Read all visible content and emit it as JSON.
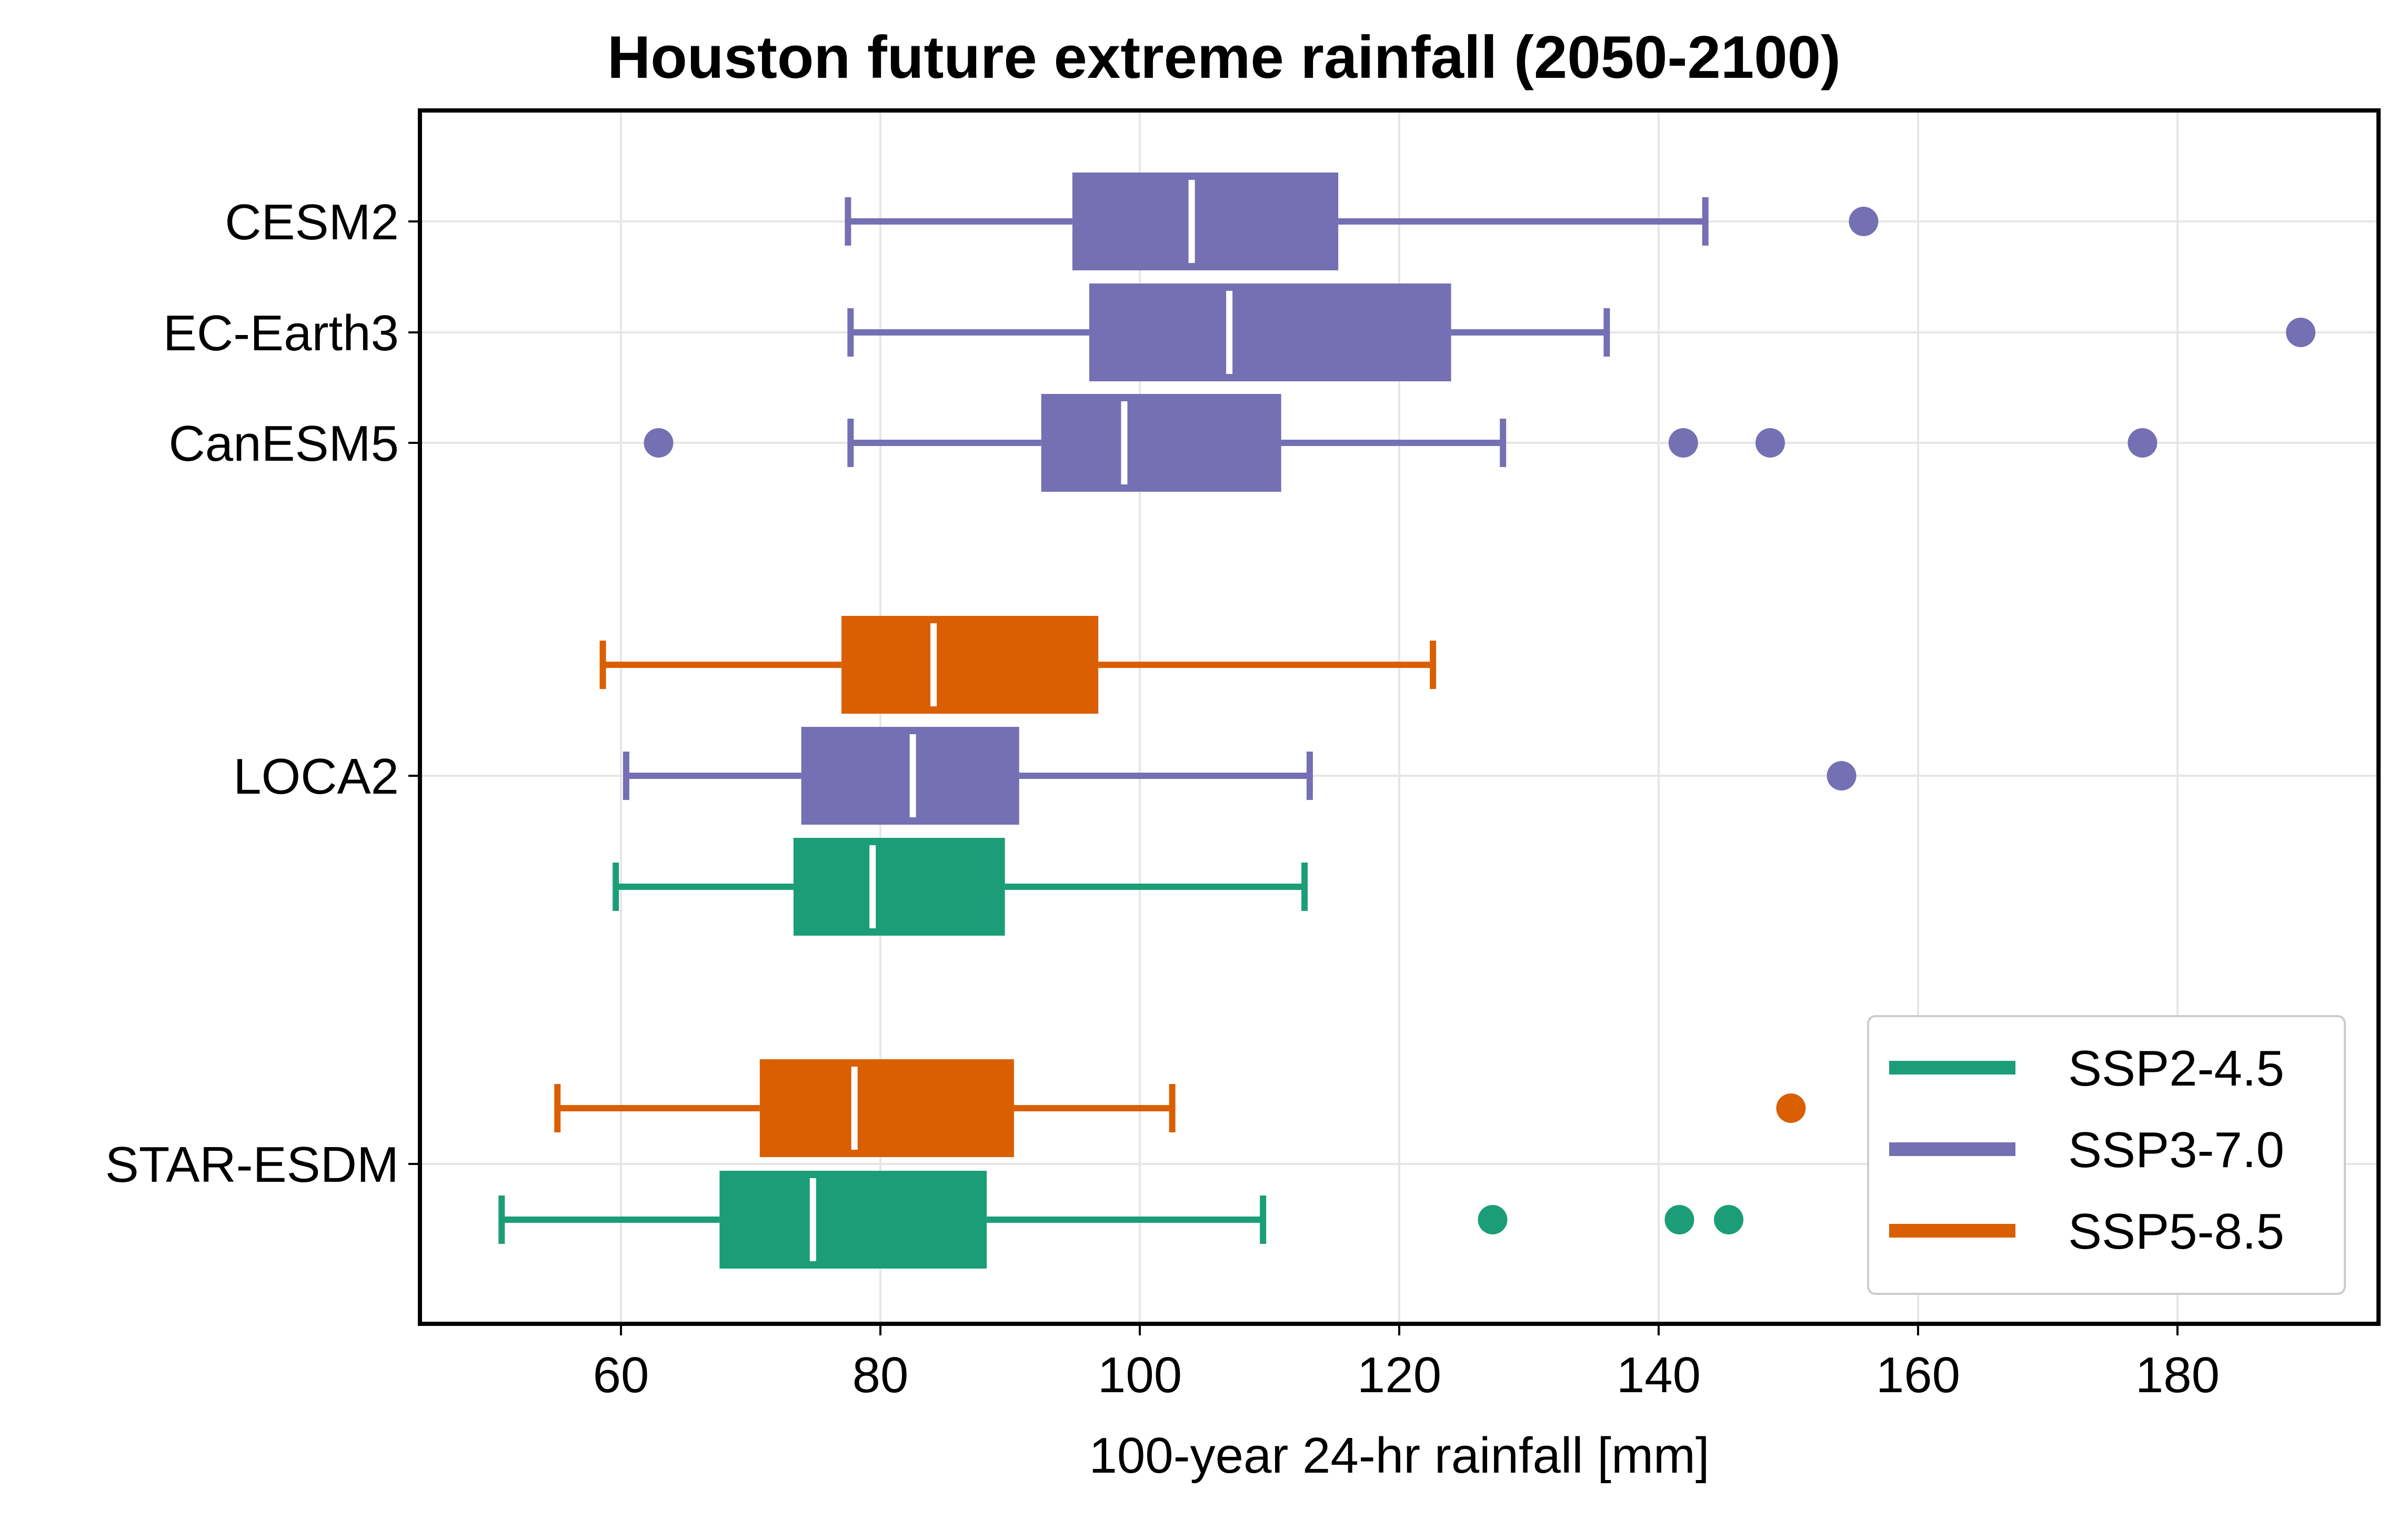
{
  "chart_data": {
    "type": "boxplot",
    "orientation": "horizontal",
    "title": "Houston future extreme rainfall (2050-2100)",
    "xlabel": "100-year 24-hr rainfall [mm]",
    "ylabel": "",
    "xlim": [
      44.5,
      195.5
    ],
    "x_ticks": [
      60,
      80,
      100,
      120,
      140,
      160,
      180
    ],
    "grid": true,
    "legend_position": "lower-right",
    "categories": [
      "CESM2",
      "EC-Earth3",
      "CanESM5",
      "LOCA2",
      "STAR-ESDM"
    ],
    "series": [
      {
        "name": "SSP2-4.5",
        "color": "#1b9e77"
      },
      {
        "name": "SSP3-7.0",
        "color": "#7570b3"
      },
      {
        "name": "SSP5-8.5",
        "color": "#d95f02"
      }
    ],
    "boxes": [
      {
        "category": "CESM2",
        "series": "SSP3-7.0",
        "whisker_low": 77.5,
        "q1": 94.8,
        "median": 104,
        "q3": 115.3,
        "whisker_high": 143.6,
        "outliers": [
          155.8
        ]
      },
      {
        "category": "EC-Earth3",
        "series": "SSP3-7.0",
        "whisker_low": 77.7,
        "q1": 96.1,
        "median": 106.9,
        "q3": 124,
        "whisker_high": 136,
        "outliers": [
          189.5
        ]
      },
      {
        "category": "CanESM5",
        "series": "SSP3-7.0",
        "whisker_low": 77.7,
        "q1": 92.4,
        "median": 98.8,
        "q3": 110.9,
        "whisker_high": 128,
        "outliers": [
          62.9,
          141.9,
          148.6,
          177.3
        ]
      },
      {
        "category": "LOCA2",
        "series": "SSP5-8.5",
        "whisker_low": 58.6,
        "q1": 77,
        "median": 84.1,
        "q3": 96.8,
        "whisker_high": 122.6,
        "outliers": []
      },
      {
        "category": "LOCA2",
        "series": "SSP3-7.0",
        "whisker_low": 60.4,
        "q1": 73.9,
        "median": 82.5,
        "q3": 90.7,
        "whisker_high": 113.1,
        "outliers": [
          154.1
        ]
      },
      {
        "category": "LOCA2",
        "series": "SSP2-4.5",
        "whisker_low": 59.6,
        "q1": 73.3,
        "median": 79.4,
        "q3": 89.6,
        "whisker_high": 112.7,
        "outliers": []
      },
      {
        "category": "STAR-ESDM",
        "series": "SSP5-8.5",
        "whisker_low": 55.1,
        "q1": 70.7,
        "median": 78,
        "q3": 90.3,
        "whisker_high": 102.5,
        "outliers": [
          150.2
        ]
      },
      {
        "category": "STAR-ESDM",
        "series": "SSP2-4.5",
        "whisker_low": 50.8,
        "q1": 67.6,
        "median": 74.8,
        "q3": 88.2,
        "whisker_high": 109.5,
        "outliers": [
          127.2,
          141.6,
          145.4
        ]
      }
    ]
  }
}
